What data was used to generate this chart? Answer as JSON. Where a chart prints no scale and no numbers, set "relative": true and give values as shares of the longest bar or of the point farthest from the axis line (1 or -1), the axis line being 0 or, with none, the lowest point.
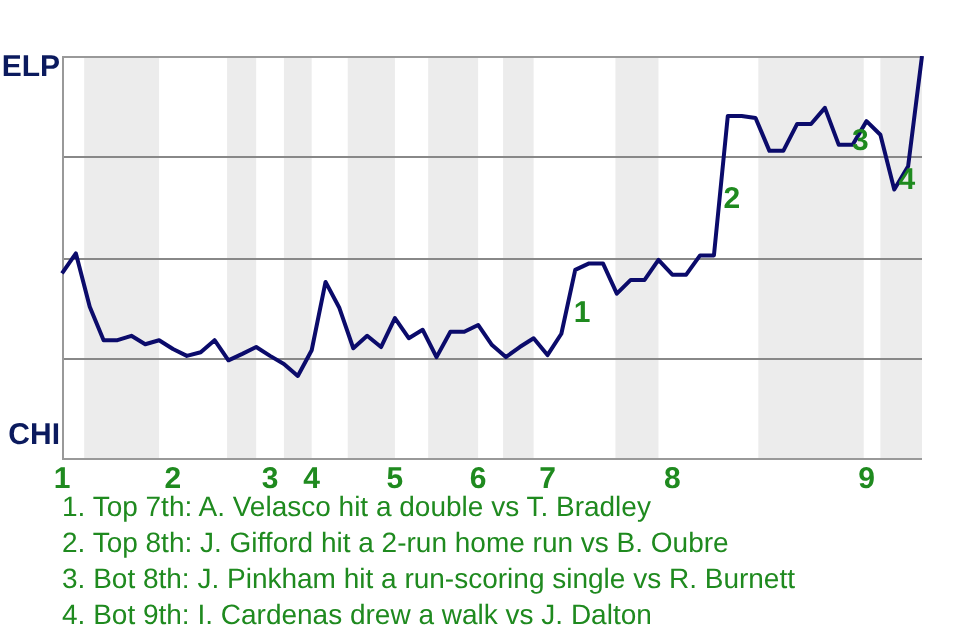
{
  "chart_data": {
    "type": "line",
    "relative": true,
    "categories": [
      "1",
      null,
      null,
      null,
      null,
      null,
      null,
      null,
      "2",
      null,
      null,
      null,
      null,
      null,
      null,
      "3",
      null,
      null,
      "4",
      null,
      null,
      null,
      null,
      null,
      "5",
      null,
      null,
      null,
      null,
      null,
      "6",
      null,
      null,
      null,
      null,
      "7",
      null,
      null,
      null,
      null,
      null,
      null,
      null,
      null,
      "8",
      null,
      null,
      null,
      null,
      null,
      null,
      null,
      null,
      null,
      null,
      null,
      null,
      null,
      "9",
      null,
      null,
      null,
      null
    ],
    "series": [
      {
        "color": "#0b0b6b",
        "values": [
          0.459,
          0.509,
          0.376,
          0.293,
          0.293,
          0.304,
          0.283,
          0.293,
          0.271,
          0.254,
          0.263,
          0.293,
          0.243,
          0.259,
          0.276,
          0.254,
          0.234,
          0.204,
          0.268,
          0.438,
          0.373,
          0.273,
          0.304,
          0.276,
          0.348,
          0.298,
          0.319,
          0.251,
          0.314,
          0.314,
          0.331,
          0.281,
          0.251,
          0.276,
          0.298,
          0.256,
          0.309,
          0.468,
          0.484,
          0.484,
          0.409,
          0.443,
          0.443,
          0.493,
          0.456,
          0.456,
          0.504,
          0.504,
          0.851,
          0.851,
          0.846,
          0.764,
          0.764,
          0.831,
          0.831,
          0.871,
          0.779,
          0.779,
          0.838,
          0.804,
          0.668,
          0.726,
          1
        ]
      }
    ],
    "grid": false,
    "legend": false,
    "marker": "none",
    "line_style": "solid",
    "ref_lines": [
      {
        "axis": "y",
        "value": 0.25,
        "color": "#888888"
      },
      {
        "axis": "y",
        "value": 0.5,
        "color": "#888888"
      },
      {
        "axis": "y",
        "value": 0.75,
        "color": "#888888"
      }
    ],
    "annotations": [
      "ELP",
      "CHI",
      "1",
      "2",
      "3",
      "4",
      "1. Top 7th: A. Velasco hit a double vs T. Bradley",
      "2. Top 8th: J. Gifford hit a 2-run home run vs B. Oubre",
      "3. Bot 8th: J. Pinkham hit a run-scoring single vs R. Burnett",
      "4. Bot 9th: I. Cardenas drew a walk vs J. Dalton"
    ]
  }
}
